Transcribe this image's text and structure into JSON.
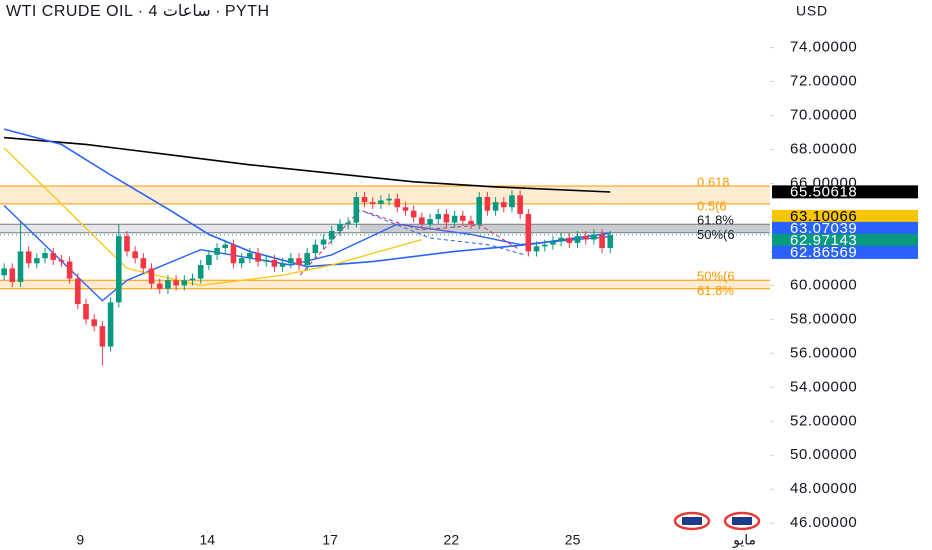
{
  "chart_data": {
    "type": "candlestick",
    "title": "WTI CRUDE OIL · 4 ساعات · PYTH",
    "currency": "USD",
    "xlim": [
      -0.5,
      93.5
    ],
    "xticks": [
      {
        "value": 9.3,
        "label": "9"
      },
      {
        "value": 24.8,
        "label": "14"
      },
      {
        "value": 39.8,
        "label": "17"
      },
      {
        "value": 54.6,
        "label": "22"
      },
      {
        "value": 69.4,
        "label": "25"
      },
      {
        "value": 90.4,
        "label": "مايو"
      }
    ],
    "ylim": [
      45.6,
      76.8
    ],
    "yticks": [
      {
        "value": 46,
        "label": "46.00000"
      },
      {
        "value": 48,
        "label": "48.00000"
      },
      {
        "value": 50,
        "label": "50.00000"
      },
      {
        "value": 52,
        "label": "52.00000"
      },
      {
        "value": 54,
        "label": "54.00000"
      },
      {
        "value": 56,
        "label": "56.00000"
      },
      {
        "value": 58,
        "label": "58.00000"
      },
      {
        "value": 60,
        "label": "60.00000"
      },
      {
        "value": 62,
        "label": "62.00000"
      },
      {
        "value": 64,
        "label": "64.00000"
      },
      {
        "value": 66,
        "label": "66.00000"
      },
      {
        "value": 68,
        "label": "68.00000"
      },
      {
        "value": 70,
        "label": "70.00000"
      },
      {
        "value": 72,
        "label": "72.00000"
      },
      {
        "value": 74,
        "label": "74.00000"
      }
    ],
    "grid": false,
    "up_color": "#089981",
    "down_color": "#f23645",
    "open": [
      60.6,
      61.0,
      60.2,
      62.0,
      61.3,
      61.6,
      61.9,
      61.5,
      61.4,
      60.4,
      58.9,
      58.0,
      57.6,
      56.4,
      59.0,
      62.9,
      62.0,
      61.6,
      61.0,
      60.1,
      59.8,
      60.3,
      60.0,
      60.3,
      60.4,
      61.2,
      61.8,
      62.2,
      62.4,
      61.3,
      61.6,
      61.9,
      61.4,
      61.5,
      61.1,
      61.3,
      61.6,
      61.2,
      61.9,
      62.4,
      62.7,
      63.2,
      63.6,
      63.7,
      65.2,
      64.9,
      64.8,
      65.0,
      65.1,
      64.6,
      64.4,
      64.0,
      63.6,
      63.9,
      64.2,
      63.7,
      64.1,
      63.8,
      63.6,
      65.2,
      64.4,
      64.9,
      64.6,
      65.3,
      64.2,
      62.0,
      62.3,
      62.4,
      62.6,
      62.8,
      62.5,
      62.9,
      62.7,
      63.0,
      62.2
    ],
    "high": [
      61.3,
      61.3,
      63.8,
      62.3,
      61.9,
      62.2,
      62.2,
      61.8,
      61.7,
      60.7,
      59.2,
      58.3,
      57.9,
      59.3,
      63.6,
      63.2,
      62.3,
      61.9,
      61.3,
      60.4,
      60.6,
      60.6,
      60.6,
      60.7,
      61.5,
      62.1,
      62.5,
      62.7,
      62.7,
      61.9,
      62.2,
      62.2,
      61.8,
      61.8,
      61.6,
      61.9,
      61.9,
      62.2,
      62.7,
      63.0,
      63.5,
      63.9,
      64.0,
      65.5,
      65.5,
      65.2,
      65.3,
      65.4,
      65.4,
      64.9,
      64.7,
      64.3,
      64.2,
      64.5,
      64.5,
      64.4,
      64.4,
      64.1,
      65.5,
      65.5,
      65.2,
      65.2,
      65.6,
      65.6,
      64.5,
      62.6,
      62.7,
      62.9,
      63.1,
      63.1,
      63.2,
      63.2,
      63.3,
      63.3,
      63.2
    ],
    "low": [
      60.3,
      59.9,
      59.9,
      61.0,
      61.0,
      61.3,
      61.2,
      61.1,
      60.1,
      58.6,
      57.7,
      57.3,
      55.3,
      56.1,
      58.7,
      61.7,
      61.3,
      60.7,
      59.8,
      59.5,
      59.5,
      59.7,
      59.7,
      60.0,
      60.1,
      60.9,
      61.5,
      61.9,
      61.0,
      61.0,
      61.3,
      61.1,
      61.1,
      60.8,
      60.8,
      61.0,
      60.9,
      60.9,
      61.6,
      62.1,
      62.4,
      62.9,
      63.3,
      63.4,
      64.6,
      64.5,
      64.5,
      64.7,
      64.3,
      64.1,
      63.7,
      63.3,
      63.3,
      63.6,
      63.4,
      63.4,
      63.5,
      63.3,
      63.3,
      64.1,
      64.1,
      64.3,
      64.3,
      63.9,
      61.7,
      61.7,
      62.0,
      62.1,
      62.3,
      62.2,
      62.2,
      62.4,
      62.4,
      61.9,
      61.9
    ],
    "close": [
      61.0,
      60.2,
      62.0,
      61.3,
      61.6,
      61.9,
      61.5,
      61.4,
      60.4,
      58.9,
      58.0,
      57.6,
      56.4,
      59.0,
      62.9,
      62.0,
      61.6,
      61.0,
      60.1,
      59.8,
      60.3,
      60.0,
      60.3,
      60.4,
      61.2,
      61.8,
      62.2,
      62.4,
      61.3,
      61.6,
      61.9,
      61.4,
      61.5,
      61.1,
      61.3,
      61.6,
      61.2,
      61.9,
      62.4,
      62.7,
      63.2,
      63.6,
      63.7,
      65.2,
      64.9,
      64.8,
      65.0,
      65.1,
      64.6,
      64.4,
      64.0,
      63.6,
      63.9,
      64.2,
      63.7,
      64.1,
      63.8,
      63.6,
      65.2,
      64.4,
      64.9,
      64.6,
      65.3,
      64.2,
      62.0,
      62.3,
      62.4,
      62.6,
      62.8,
      62.5,
      62.9,
      62.7,
      63.0,
      62.2,
      62.97
    ],
    "lines": [
      {
        "color": "#000000",
        "width": 1.6,
        "x": [
          0,
          10,
          20,
          30,
          40,
          50,
          60,
          74
        ],
        "values": [
          68.7,
          68.3,
          67.7,
          67.1,
          66.6,
          66.1,
          65.8,
          65.5
        ]
      },
      {
        "color": "#2962ff",
        "width": 1.6,
        "x": [
          0,
          7,
          13,
          20,
          25,
          30,
          37,
          45,
          55,
          64,
          74
        ],
        "values": [
          69.2,
          68.3,
          66.5,
          64.5,
          63.0,
          62.0,
          61.1,
          61.4,
          62.0,
          62.4,
          63.07
        ]
      },
      {
        "color": "#2962ff",
        "width": 1.4,
        "x": [
          0,
          12,
          15,
          24,
          35,
          40,
          48,
          57,
          63,
          74
        ],
        "values": [
          64.7,
          59.1,
          60.3,
          62.1,
          61.2,
          61.8,
          63.6,
          63.0,
          62.4,
          62.87
        ]
      },
      {
        "color": "#f7c600",
        "width": 1.2,
        "x": [
          0,
          15,
          24,
          34,
          40,
          51
        ],
        "values": [
          68.1,
          61.0,
          60.0,
          60.6,
          61.2,
          62.7
        ]
      }
    ],
    "bands": [
      {
        "top": 65.85,
        "bottom": 64.8,
        "color": "#ff9800",
        "labels": [
          "0.618",
          "0.5(6"
        ]
      },
      {
        "top": 63.6,
        "bottom": 63.1,
        "color": "#787b86",
        "labels": [
          "61.8%",
          "50%(6"
        ]
      },
      {
        "top": 60.3,
        "bottom": 59.8,
        "color": "#ff9800",
        "labels": [
          "50%(6",
          "61.8%"
        ]
      }
    ],
    "price_labels": [
      {
        "value": 65.50618,
        "color": "#000000",
        "text_color": "#ffffff"
      },
      {
        "value": 63.10066,
        "color": "#f7c600",
        "text_color": "#000000"
      },
      {
        "value": 63.07039,
        "color": "#2962ff",
        "text_color": "#ffffff"
      },
      {
        "value": 62.97143,
        "color": "#089981",
        "text_color": "#ffffff"
      },
      {
        "value": 62.86569,
        "color": "#2962ff",
        "text_color": "#ffffff"
      }
    ]
  }
}
